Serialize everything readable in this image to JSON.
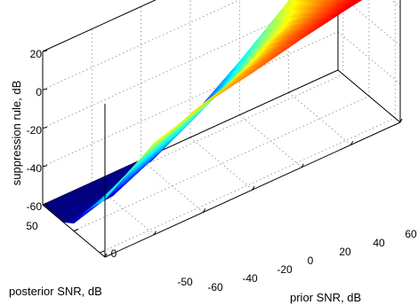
{
  "chart_data": {
    "type": "surface",
    "title": "",
    "zlabel": "suppression rule, dB",
    "xlabel": "prior SNR, dB",
    "ylabel": "posterior SNR, dB",
    "x_ticks": [
      -60,
      -40,
      -20,
      0,
      20,
      40,
      60
    ],
    "y_ticks": [
      50,
      0,
      -50
    ],
    "z_ticks": [
      20,
      0,
      -20,
      -40,
      -60
    ],
    "xlim": [
      -60,
      60
    ],
    "ylim": [
      -60,
      60
    ],
    "zlim": [
      -60,
      20
    ],
    "grid": true,
    "colormap": "jet",
    "surface": {
      "grid_x": [
        -60,
        -40,
        -20,
        0,
        20,
        40,
        60
      ],
      "grid_y": [
        -60,
        -40,
        -20,
        0,
        20,
        40,
        60
      ],
      "z_by_y": [
        [
          -30,
          -12,
          -4,
          1,
          7,
          12,
          16
        ],
        [
          -38,
          -24,
          -12,
          -4,
          3,
          8,
          12
        ],
        [
          -46,
          -36,
          -24,
          -12,
          -2,
          4,
          8
        ],
        [
          -56,
          -48,
          -36,
          -22,
          -8,
          0,
          4
        ],
        [
          -60,
          -58,
          -46,
          -32,
          -16,
          -4,
          2
        ],
        [
          -60,
          -60,
          -56,
          -42,
          -24,
          -8,
          0
        ],
        [
          -60,
          -60,
          -60,
          -50,
          -32,
          -12,
          -1
        ]
      ]
    }
  }
}
